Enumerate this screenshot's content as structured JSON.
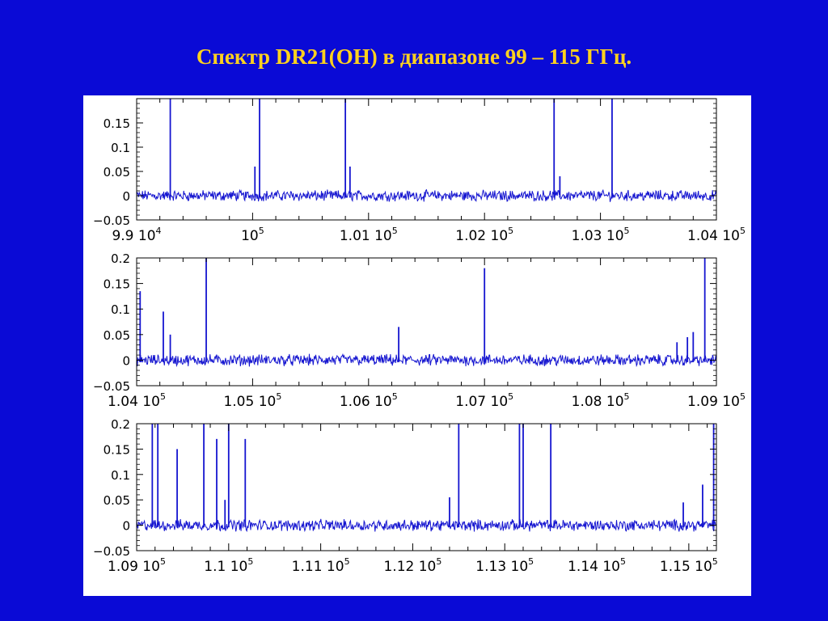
{
  "title": "Спектр DR21(OH) в диапазоне 99 – 115 ГГц.",
  "colors": {
    "background": "#0a0ad6",
    "title": "#ffd21e",
    "trace": "#1515d0",
    "panel": "#ffffff"
  },
  "chart_data": [
    {
      "type": "line",
      "xlim": [
        99000,
        104000
      ],
      "ylim": [
        -0.05,
        0.2
      ],
      "yticks": [
        "0.15",
        "0.1",
        "0.05",
        "0",
        "−0.05"
      ],
      "xticks": [
        {
          "value": 99000,
          "mantissa": "9.9",
          "exp": "4"
        },
        {
          "value": 100000,
          "mantissa": "",
          "exp": "5"
        },
        {
          "value": 101000,
          "mantissa": "1.01",
          "exp": "5"
        },
        {
          "value": 102000,
          "mantissa": "1.02",
          "exp": "5"
        },
        {
          "value": 103000,
          "mantissa": "1.03",
          "exp": "5"
        },
        {
          "value": 104000,
          "mantissa": "1.04",
          "exp": "5"
        }
      ],
      "peaks": [
        {
          "x": 99290,
          "y": 0.2
        },
        {
          "x": 100020,
          "y": 0.06
        },
        {
          "x": 100060,
          "y": 0.2
        },
        {
          "x": 100800,
          "y": 0.2
        },
        {
          "x": 100840,
          "y": 0.06
        },
        {
          "x": 102600,
          "y": 0.2
        },
        {
          "x": 102650,
          "y": 0.04
        },
        {
          "x": 103100,
          "y": 0.2
        }
      ]
    },
    {
      "type": "line",
      "xlim": [
        104000,
        109000
      ],
      "ylim": [
        -0.05,
        0.2
      ],
      "yticks": [
        "0.2",
        "0.15",
        "0.1",
        "0.05",
        "0",
        "−0.05"
      ],
      "xticks": [
        {
          "value": 104000,
          "mantissa": "1.04",
          "exp": "5"
        },
        {
          "value": 105000,
          "mantissa": "1.05",
          "exp": "5"
        },
        {
          "value": 106000,
          "mantissa": "1.06",
          "exp": "5"
        },
        {
          "value": 107000,
          "mantissa": "1.07",
          "exp": "5"
        },
        {
          "value": 108000,
          "mantissa": "1.08",
          "exp": "5"
        },
        {
          "value": 109000,
          "mantissa": "1.09",
          "exp": "5"
        }
      ],
      "peaks": [
        {
          "x": 104030,
          "y": 0.135
        },
        {
          "x": 104230,
          "y": 0.095
        },
        {
          "x": 104290,
          "y": 0.05
        },
        {
          "x": 104600,
          "y": 0.2
        },
        {
          "x": 106260,
          "y": 0.065
        },
        {
          "x": 107000,
          "y": 0.18
        },
        {
          "x": 108660,
          "y": 0.035
        },
        {
          "x": 108750,
          "y": 0.045
        },
        {
          "x": 108800,
          "y": 0.055
        },
        {
          "x": 108900,
          "y": 0.2
        }
      ]
    },
    {
      "type": "line",
      "xlim": [
        109000,
        115300
      ],
      "ylim": [
        -0.05,
        0.2
      ],
      "yticks": [
        "0.2",
        "0.15",
        "0.1",
        "0.05",
        "0",
        "−0.05"
      ],
      "xticks": [
        {
          "value": 109000,
          "mantissa": "1.09",
          "exp": "5"
        },
        {
          "value": 110000,
          "mantissa": "1.1",
          "exp": "5"
        },
        {
          "value": 111000,
          "mantissa": "1.11",
          "exp": "5"
        },
        {
          "value": 112000,
          "mantissa": "1.12",
          "exp": "5"
        },
        {
          "value": 113000,
          "mantissa": "1.13",
          "exp": "5"
        },
        {
          "value": 114000,
          "mantissa": "1.14",
          "exp": "5"
        },
        {
          "value": 115000,
          "mantissa": "1.15",
          "exp": "5"
        }
      ],
      "peaks": [
        {
          "x": 109170,
          "y": 0.2
        },
        {
          "x": 109230,
          "y": 0.2
        },
        {
          "x": 109440,
          "y": 0.15
        },
        {
          "x": 109730,
          "y": 0.2
        },
        {
          "x": 109870,
          "y": 0.17
        },
        {
          "x": 109960,
          "y": 0.05
        },
        {
          "x": 110000,
          "y": 0.2
        },
        {
          "x": 110180,
          "y": 0.17
        },
        {
          "x": 112400,
          "y": 0.055
        },
        {
          "x": 112500,
          "y": 0.2
        },
        {
          "x": 113160,
          "y": 0.2
        },
        {
          "x": 113200,
          "y": 0.2
        },
        {
          "x": 113500,
          "y": 0.2
        },
        {
          "x": 114940,
          "y": 0.045
        },
        {
          "x": 115150,
          "y": 0.08
        },
        {
          "x": 115270,
          "y": 0.2
        }
      ]
    }
  ]
}
